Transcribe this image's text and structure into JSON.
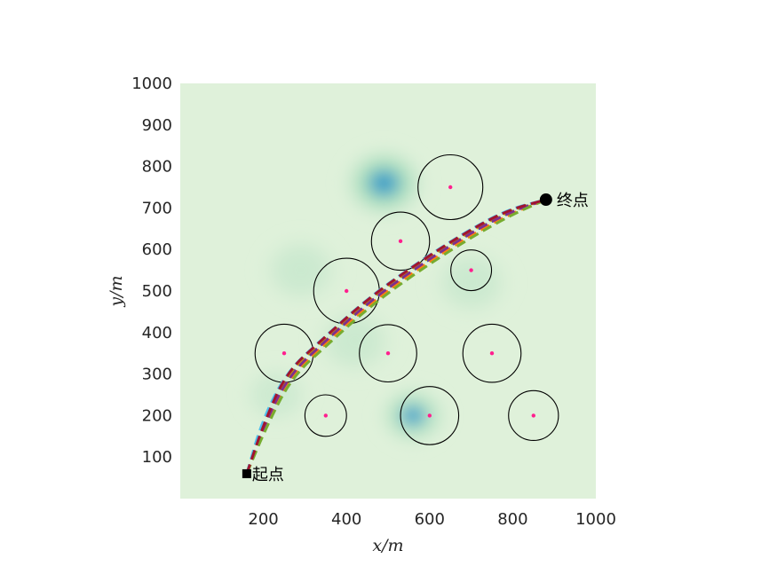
{
  "chart_data": {
    "type": "scatter",
    "title": "",
    "xlabel": "x/m",
    "ylabel": "y/m",
    "xlim": [
      0,
      1000
    ],
    "ylim": [
      0,
      1000
    ],
    "x_ticks": [
      200,
      400,
      600,
      800,
      1000
    ],
    "y_ticks": [
      100,
      200,
      300,
      400,
      500,
      600,
      700,
      800,
      900,
      1000
    ],
    "grid": false,
    "background": {
      "type": "heatmap",
      "colors": [
        "#dff1da",
        "#a9dcbd",
        "#2c92c8"
      ],
      "peaks": [
        {
          "x": 490,
          "y": 760,
          "strength": 1.0,
          "spread": 70
        },
        {
          "x": 560,
          "y": 200,
          "strength": 0.7,
          "spread": 60
        },
        {
          "x": 290,
          "y": 550,
          "strength": 0.25,
          "spread": 70
        },
        {
          "x": 420,
          "y": 380,
          "strength": 0.25,
          "spread": 70
        },
        {
          "x": 700,
          "y": 520,
          "strength": 0.25,
          "spread": 70
        },
        {
          "x": 230,
          "y": 250,
          "strength": 0.2,
          "spread": 60
        }
      ]
    },
    "threats": [
      {
        "x": 650,
        "y": 750,
        "r": 78
      },
      {
        "x": 530,
        "y": 620,
        "r": 70
      },
      {
        "x": 700,
        "y": 550,
        "r": 49
      },
      {
        "x": 400,
        "y": 500,
        "r": 79
      },
      {
        "x": 250,
        "y": 350,
        "r": 70
      },
      {
        "x": 500,
        "y": 350,
        "r": 69
      },
      {
        "x": 750,
        "y": 350,
        "r": 70
      },
      {
        "x": 350,
        "y": 200,
        "r": 50
      },
      {
        "x": 600,
        "y": 200,
        "r": 70
      },
      {
        "x": 850,
        "y": 200,
        "r": 60
      }
    ],
    "start": {
      "x": 160,
      "y": 60,
      "label": "起点"
    },
    "end": {
      "x": 880,
      "y": 720,
      "label": "终点"
    },
    "paths": [
      {
        "color": "#1f77b4",
        "x": [
          160,
          200,
          260,
          350,
          450,
          560,
          680,
          790,
          880
        ],
        "y": [
          60,
          180,
          300,
          380,
          470,
          550,
          630,
          690,
          720
        ]
      },
      {
        "color": "#ff7f0e",
        "x": [
          160,
          205,
          265,
          355,
          455,
          565,
          685,
          795,
          880
        ],
        "y": [
          60,
          175,
          295,
          378,
          468,
          548,
          626,
          686,
          720
        ]
      },
      {
        "color": "#c8a200",
        "x": [
          160,
          198,
          258,
          348,
          448,
          558,
          678,
          788,
          880
        ],
        "y": [
          60,
          182,
          302,
          384,
          474,
          554,
          632,
          692,
          720
        ]
      },
      {
        "color": "#7e2f8e",
        "x": [
          160,
          202,
          262,
          352,
          452,
          562,
          682,
          792,
          880
        ],
        "y": [
          60,
          178,
          298,
          382,
          472,
          552,
          630,
          690,
          720
        ]
      },
      {
        "color": "#77ac30",
        "x": [
          160,
          207,
          268,
          358,
          458,
          568,
          688,
          798,
          880
        ],
        "y": [
          60,
          172,
          292,
          374,
          464,
          544,
          622,
          684,
          720
        ]
      },
      {
        "color": "#4dbeee",
        "x": [
          160,
          196,
          256,
          346,
          446,
          556,
          676,
          786,
          880
        ],
        "y": [
          60,
          185,
          306,
          388,
          478,
          558,
          636,
          696,
          720
        ]
      },
      {
        "color": "#a2142f",
        "x": [
          160,
          200,
          255,
          345,
          445,
          555,
          675,
          785,
          880
        ],
        "y": [
          60,
          178,
          304,
          386,
          476,
          556,
          634,
          694,
          720
        ]
      }
    ]
  }
}
